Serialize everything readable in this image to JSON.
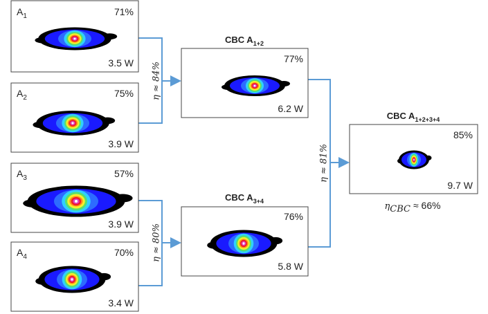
{
  "inputs": [
    {
      "name": "A",
      "sub": "1",
      "efficiency": "71%",
      "power": "3.5 W"
    },
    {
      "name": "A",
      "sub": "2",
      "efficiency": "75%",
      "power": "3.9 W"
    },
    {
      "name": "A",
      "sub": "3",
      "efficiency": "57%",
      "power": "3.9 W"
    },
    {
      "name": "A",
      "sub": "4",
      "efficiency": "70%",
      "power": "3.4 W"
    }
  ],
  "combined": [
    {
      "title": "CBC A",
      "sub": "1+2",
      "efficiency": "77%",
      "power": "6.2 W"
    },
    {
      "title": "CBC A",
      "sub": "3+4",
      "efficiency": "76%",
      "power": "5.8 W"
    },
    {
      "title": "CBC A",
      "sub": "1+2+3+4",
      "efficiency": "85%",
      "power": "9.7 W"
    }
  ],
  "stage_efficiencies": [
    "η ≈ 84%",
    "η ≈ 80%",
    "η ≈ 81%"
  ],
  "overall": {
    "symbol": "η",
    "sub": "CBC",
    "value": "≈  66%"
  }
}
